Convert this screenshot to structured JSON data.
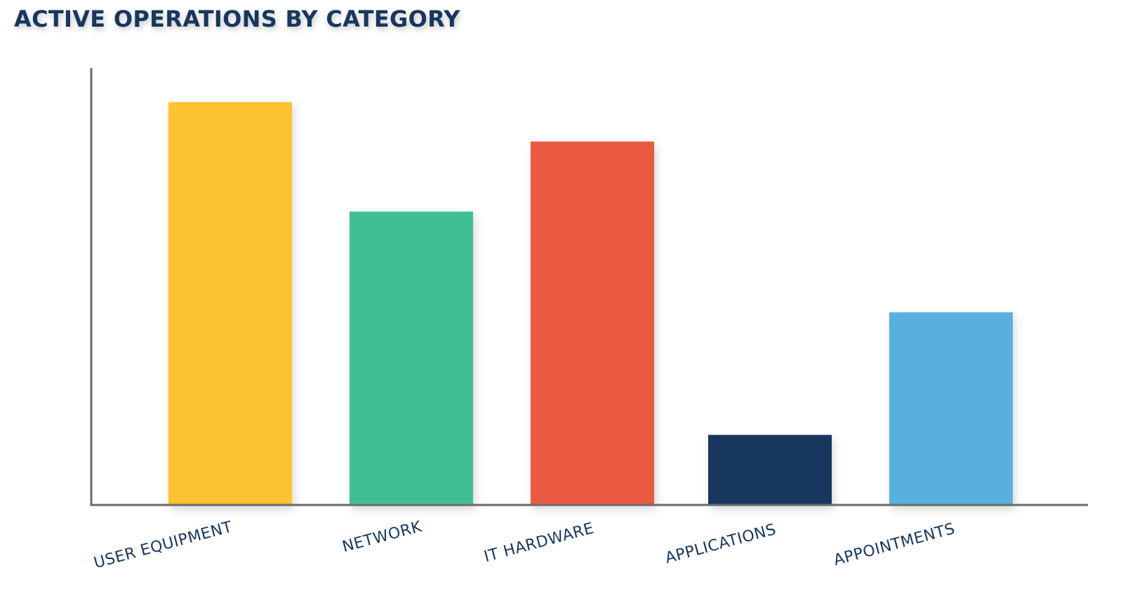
{
  "chart_data": {
    "type": "bar",
    "title": "ACTIVE OPERATIONS BY CATEGORY",
    "xlabel": "",
    "ylabel": "",
    "categories": [
      "USER EQUIPMENT",
      "NETWORK",
      "IT HARDWARE",
      "APPLICATIONS",
      "APPOINTMENTS"
    ],
    "values": [
      92,
      67,
      83,
      16,
      44
    ],
    "ylim": [
      0,
      100
    ],
    "grid": false,
    "legend": "none",
    "bar_colors": [
      "#fdc232",
      "#40bf96",
      "#e95a40",
      "#17375e",
      "#58b0df"
    ],
    "text_color": "#17375e",
    "axis_color": "#6b6b6b"
  }
}
